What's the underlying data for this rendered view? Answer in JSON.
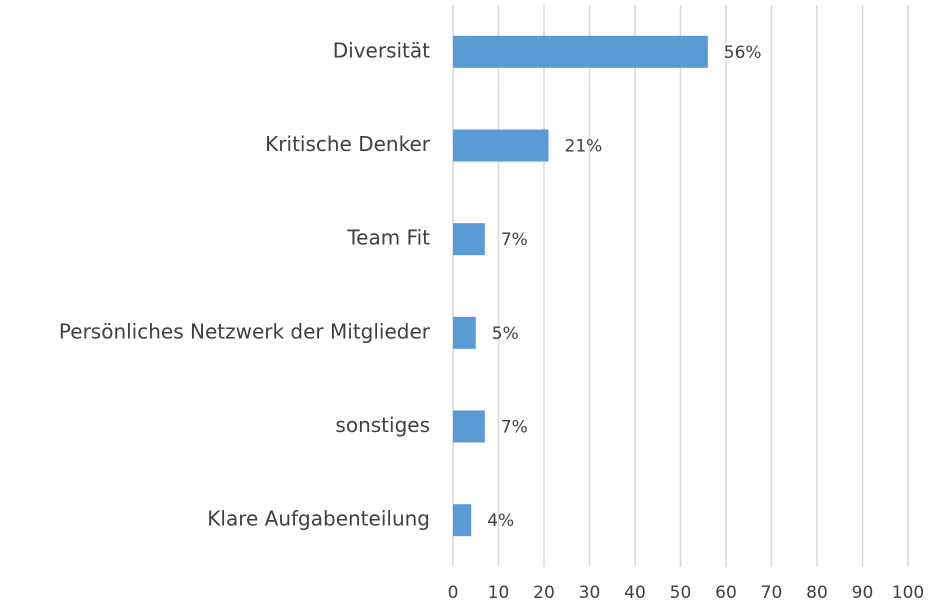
{
  "chart_data": {
    "type": "bar",
    "orientation": "horizontal",
    "categories": [
      "Diversität",
      "Kritische Denker",
      "Team Fit",
      "Persönliches Netzwerk der Mitglieder",
      "sonstiges",
      "Klare Aufgabenteilung"
    ],
    "values": [
      56,
      21,
      7,
      5,
      7,
      4
    ],
    "value_labels": [
      "56%",
      "21%",
      "7%",
      "5%",
      "7%",
      "4%"
    ],
    "color": "#5b9bd5",
    "xlim": [
      0,
      100
    ],
    "xticks": [
      0,
      10,
      20,
      30,
      40,
      50,
      60,
      70,
      80,
      90,
      100
    ],
    "grid": true
  }
}
